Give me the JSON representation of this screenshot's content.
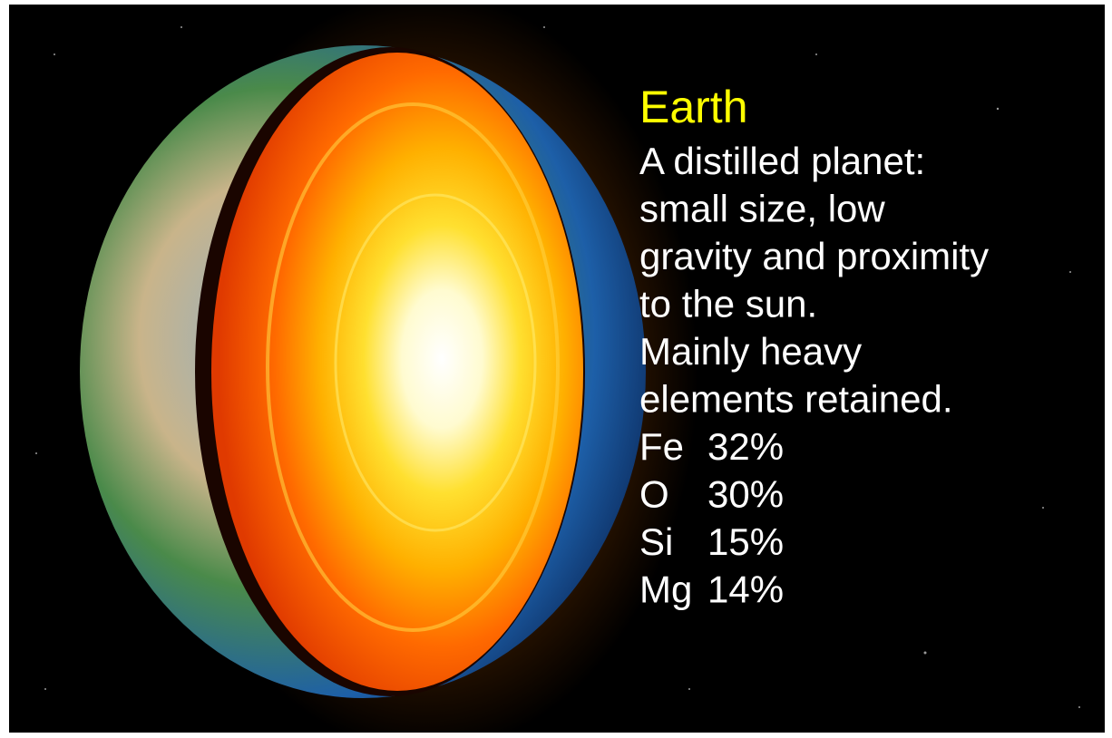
{
  "title": "Earth",
  "description": [
    "A distilled planet:",
    "small size, low",
    "gravity and proximity",
    "to the sun.",
    "Mainly heavy",
    "elements retained."
  ],
  "composition": [
    {
      "element": "Fe",
      "share": "32%"
    },
    {
      "element": "O",
      "share": "30%"
    },
    {
      "element": "Si",
      "share": "15%"
    },
    {
      "element": "Mg",
      "share": "14%"
    }
  ]
}
